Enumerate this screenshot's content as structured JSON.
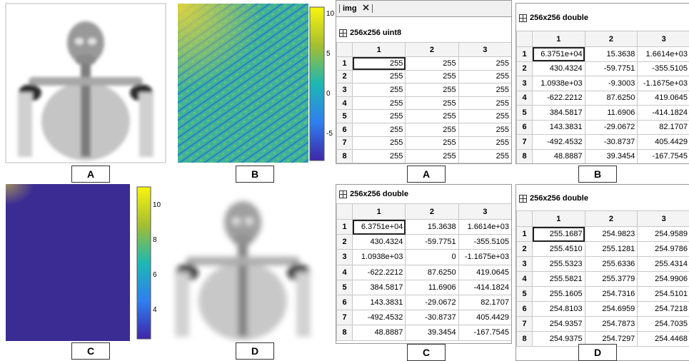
{
  "figures": [
    {
      "label": "A"
    },
    {
      "label": "B",
      "colorbar_ticks": [
        10,
        5,
        0,
        -5
      ]
    },
    {
      "label": "C",
      "colorbar_ticks": [
        10,
        8,
        6,
        4
      ]
    },
    {
      "label": "D"
    }
  ],
  "tables": [
    {
      "tab": "img",
      "size": "256x256 uint8",
      "columns": [
        "1",
        "2",
        "3"
      ],
      "label": "A",
      "rows": [
        {
          "name": "1",
          "cells": [
            "255",
            "255",
            "255"
          ]
        },
        {
          "name": "2",
          "cells": [
            "255",
            "255",
            "255"
          ]
        },
        {
          "name": "3",
          "cells": [
            "255",
            "255",
            "255"
          ]
        },
        {
          "name": "4",
          "cells": [
            "255",
            "255",
            "255"
          ]
        },
        {
          "name": "5",
          "cells": [
            "255",
            "255",
            "255"
          ]
        },
        {
          "name": "6",
          "cells": [
            "255",
            "255",
            "255"
          ]
        },
        {
          "name": "7",
          "cells": [
            "255",
            "255",
            "255"
          ]
        },
        {
          "name": "8",
          "cells": [
            "255",
            "255",
            "255"
          ]
        }
      ]
    },
    {
      "size": "256x256 double",
      "columns": [
        "1",
        "2",
        "3"
      ],
      "label": "B",
      "rows": [
        {
          "name": "1",
          "cells": [
            "6.3751e+04",
            "15.3638",
            "1.6614e+03"
          ]
        },
        {
          "name": "2",
          "cells": [
            "430.4324",
            "-59.7751",
            "-355.5105"
          ]
        },
        {
          "name": "3",
          "cells": [
            "1.0938e+03",
            "-9.3003",
            "-1.1675e+03"
          ]
        },
        {
          "name": "4",
          "cells": [
            "-622.2212",
            "87.6250",
            "419.0645"
          ]
        },
        {
          "name": "5",
          "cells": [
            "384.5817",
            "11.6906",
            "-414.1824"
          ]
        },
        {
          "name": "6",
          "cells": [
            "143.3831",
            "-29.0672",
            "82.1707"
          ]
        },
        {
          "name": "7",
          "cells": [
            "-492.4532",
            "-30.8737",
            "405.4429"
          ]
        },
        {
          "name": "8",
          "cells": [
            "48.8887",
            "39.3454",
            "-167.7545"
          ]
        }
      ]
    },
    {
      "size": "256x256 double",
      "columns": [
        "1",
        "2",
        "3"
      ],
      "label": "C",
      "rows": [
        {
          "name": "1",
          "cells": [
            "6.3751e+04",
            "15.3638",
            "1.6614e+03"
          ]
        },
        {
          "name": "2",
          "cells": [
            "430.4324",
            "-59.7751",
            "-355.5105"
          ]
        },
        {
          "name": "3",
          "cells": [
            "1.0938e+03",
            "0",
            "-1.1675e+03"
          ]
        },
        {
          "name": "4",
          "cells": [
            "-622.2212",
            "87.6250",
            "419.0645"
          ]
        },
        {
          "name": "5",
          "cells": [
            "384.5817",
            "11.6906",
            "-414.1824"
          ]
        },
        {
          "name": "6",
          "cells": [
            "143.3831",
            "-29.0672",
            "82.1707"
          ]
        },
        {
          "name": "7",
          "cells": [
            "-492.4532",
            "-30.8737",
            "405.4429"
          ]
        },
        {
          "name": "8",
          "cells": [
            "48.8887",
            "39.3454",
            "-167.7545"
          ]
        }
      ]
    },
    {
      "size": "256x256 double",
      "columns": [
        "1",
        "2",
        "3"
      ],
      "label": "D",
      "rows": [
        {
          "name": "1",
          "cells": [
            "255.1687",
            "254.9823",
            "254.9589"
          ]
        },
        {
          "name": "2",
          "cells": [
            "255.4510",
            "255.1281",
            "254.9786"
          ]
        },
        {
          "name": "3",
          "cells": [
            "255.5323",
            "255.6336",
            "255.4314"
          ]
        },
        {
          "name": "4",
          "cells": [
            "255.5821",
            "255.3779",
            "254.9906"
          ]
        },
        {
          "name": "5",
          "cells": [
            "255.1605",
            "254.7316",
            "254.5101"
          ]
        },
        {
          "name": "6",
          "cells": [
            "254.8103",
            "254.6959",
            "254.7218"
          ]
        },
        {
          "name": "7",
          "cells": [
            "254.9357",
            "254.7873",
            "254.7035"
          ]
        },
        {
          "name": "8",
          "cells": [
            "254.9375",
            "254.7297",
            "254.4468"
          ]
        }
      ]
    }
  ]
}
